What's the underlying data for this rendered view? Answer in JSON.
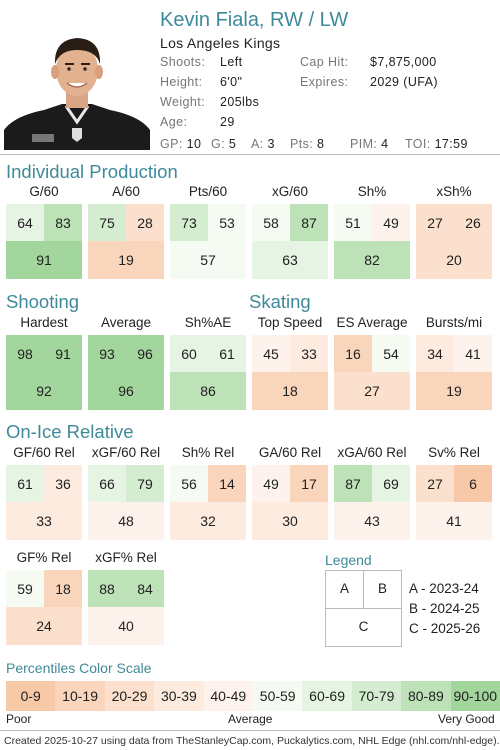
{
  "player": {
    "name": "Kevin Fiala, RW / LW",
    "team": "Los Angeles Kings",
    "shoots_label": "Shoots:",
    "shoots": "Left",
    "height_label": "Height:",
    "height": "6'0\"",
    "weight_label": "Weight:",
    "weight": "205lbs",
    "age_label": "Age:",
    "age": "29",
    "cap_label": "Cap Hit:",
    "cap": "$7,875,000",
    "expires_label": "Expires:",
    "expires": "2029 (UFA)"
  },
  "stats_line": {
    "gp_label": "GP:",
    "gp": "10",
    "g_label": "G:",
    "g": "5",
    "a_label": "A:",
    "a": "3",
    "pts_label": "Pts:",
    "pts": "8",
    "pim_label": "PIM:",
    "pim": "4",
    "toi_label": "TOI:",
    "toi": "17:59"
  },
  "sections": {
    "production": "Individual Production",
    "shooting": "Shooting",
    "skating": "Skating",
    "onice": "On-Ice Relative"
  },
  "metrics": [
    {
      "label": "G/60",
      "a": 64,
      "b": 83,
      "c": 91
    },
    {
      "label": "A/60",
      "a": 75,
      "b": 28,
      "c": 19
    },
    {
      "label": "Pts/60",
      "a": 73,
      "b": 53,
      "c": 57
    },
    {
      "label": "xG/60",
      "a": 58,
      "b": 87,
      "c": 63
    },
    {
      "label": "Sh%",
      "a": 51,
      "b": 49,
      "c": 82
    },
    {
      "label": "xSh%",
      "a": 27,
      "b": 26,
      "c": 20
    },
    {
      "label": "Hardest",
      "a": 98,
      "b": 91,
      "c": 92
    },
    {
      "label": "Average",
      "a": 93,
      "b": 96,
      "c": 96
    },
    {
      "label": "Sh%AE",
      "a": 60,
      "b": 61,
      "c": 86
    },
    {
      "label": "Top Speed",
      "a": 45,
      "b": 33,
      "c": 18
    },
    {
      "label": "ES Average",
      "a": 16,
      "b": 54,
      "c": 27
    },
    {
      "label": "Bursts/mi",
      "a": 34,
      "b": 41,
      "c": 19
    },
    {
      "label": "GF/60 Rel",
      "a": 61,
      "b": 36,
      "c": 33
    },
    {
      "label": "xGF/60 Rel",
      "a": 66,
      "b": 79,
      "c": 48
    },
    {
      "label": "Sh% Rel",
      "a": 56,
      "b": 14,
      "c": 32
    },
    {
      "label": "GA/60 Rel",
      "a": 49,
      "b": 17,
      "c": 30
    },
    {
      "label": "xGA/60 Rel",
      "a": 87,
      "b": 69,
      "c": 43
    },
    {
      "label": "Sv% Rel",
      "a": 27,
      "b": 6,
      "c": 41
    },
    {
      "label": "GF% Rel",
      "a": 59,
      "b": 18,
      "c": 24
    },
    {
      "label": "xGF% Rel",
      "a": 88,
      "b": 84,
      "c": 40
    }
  ],
  "legend": {
    "title": "Legend",
    "a": "A",
    "b": "B",
    "c": "C",
    "a_desc": "A - 2023-24",
    "b_desc": "B - 2024-25",
    "c_desc": "C - 2025-26"
  },
  "scale": {
    "title": "Percentiles Color Scale",
    "bins": [
      "0-9",
      "10-19",
      "20-29",
      "30-39",
      "40-49",
      "50-59",
      "60-69",
      "70-79",
      "80-89",
      "90-100"
    ],
    "colors": [
      "#f7c9a9",
      "#f9d5bb",
      "#fbe1cd",
      "#fdebe0",
      "#fdf3ec",
      "#f5faf3",
      "#e6f4e3",
      "#d4ecd0",
      "#bde2b8",
      "#a3d69d"
    ],
    "poor": "Poor",
    "average": "Average",
    "very_good": "Very Good"
  },
  "footer": "Created 2025-10-27 using data from TheStanleyCap.com, Puckalytics.com, NHL Edge (nhl.com/nhl-edge)."
}
